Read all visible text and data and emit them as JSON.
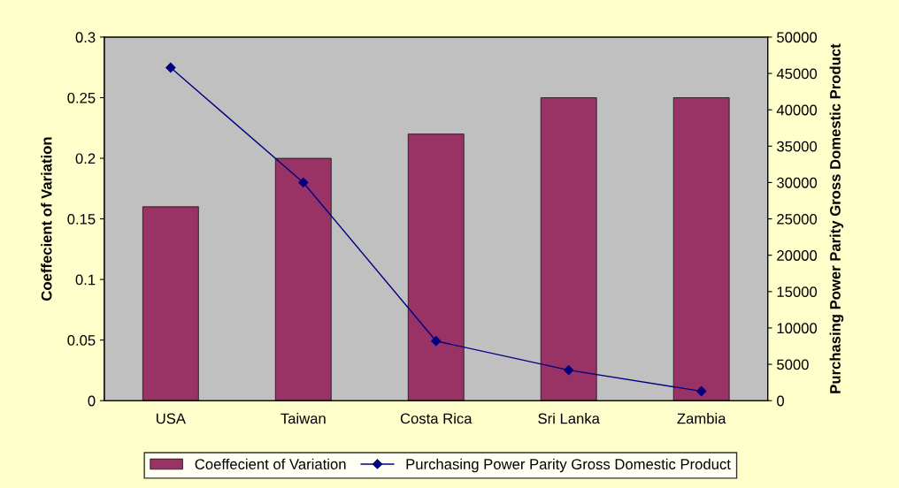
{
  "chart_data": {
    "type": "bar",
    "categories": [
      "USA",
      "Taiwan",
      "Costa Rica",
      "Sri Lanka",
      "Zambia"
    ],
    "ylabel": "Coeffecient of Variation",
    "y2label": "Purchasing Power Parity Gross Domestic Product",
    "series": [
      {
        "name": "Coeffecient of Variation",
        "color": "#993366",
        "values": [
          0.16,
          0.2,
          0.22,
          0.25,
          0.25
        ]
      },
      {
        "name": "Purchasing Power Parity Gross Domestic Product",
        "type": "line",
        "axis": "y2",
        "color": "#000080",
        "marker": "diamond",
        "values": [
          45800,
          30000,
          8200,
          4200,
          1300
        ]
      }
    ],
    "ylim": [
      0,
      0.3
    ],
    "yticks": [
      0,
      0.05,
      0.1,
      0.15,
      0.2,
      0.25,
      0.3
    ],
    "y2lim": [
      0,
      50000
    ],
    "y2ticks": [
      0,
      5000,
      10000,
      15000,
      20000,
      25000,
      30000,
      35000,
      40000,
      45000,
      50000
    ],
    "grid": false,
    "legend": "bottom"
  }
}
